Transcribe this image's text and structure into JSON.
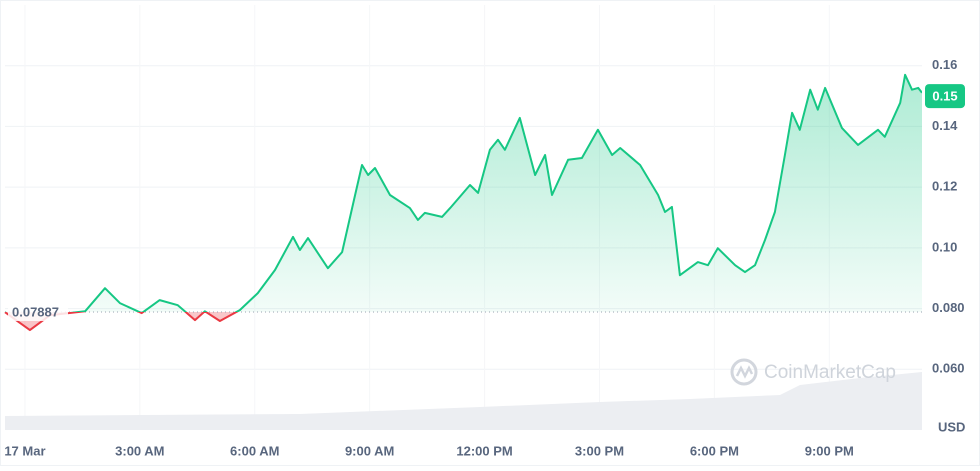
{
  "chart_data": {
    "type": "line",
    "y_label": "USD",
    "watermark": "CoinMarketCap",
    "baseline": 0.07887,
    "current_price": 0.15,
    "color_up": "#16c784",
    "color_down": "#ea3943",
    "grid": true,
    "xlim": [
      -0.52,
      23.42
    ],
    "xticks": [
      {
        "value": 0,
        "label": "17 Mar"
      },
      {
        "value": 3,
        "label": "3:00 AM"
      },
      {
        "value": 6,
        "label": "6:00 AM"
      },
      {
        "value": 9,
        "label": "9:00 AM"
      },
      {
        "value": 12,
        "label": "12:00 PM"
      },
      {
        "value": 15,
        "label": "3:00 PM"
      },
      {
        "value": 18,
        "label": "6:00 PM"
      },
      {
        "value": 21,
        "label": "9:00 PM"
      }
    ],
    "ylim": [
      0.04,
      0.18
    ],
    "yticks": [
      {
        "value": 0.06,
        "label": "0.060"
      },
      {
        "value": 0.08,
        "label": "0.080"
      },
      {
        "value": 0.1,
        "label": "0.10"
      },
      0.12,
      0.14,
      0.16
    ],
    "x": [
      -0.52,
      0.13,
      0.65,
      1.57,
      2.09,
      2.48,
      3.05,
      3.52,
      3.99,
      4.44,
      4.7,
      5.09,
      5.61,
      6.08,
      6.53,
      7.0,
      7.18,
      7.39,
      7.91,
      8.28,
      8.62,
      8.8,
      8.96,
      9.14,
      9.53,
      10.05,
      10.26,
      10.44,
      10.89,
      11.1,
      11.62,
      11.83,
      12.14,
      12.35,
      12.53,
      12.92,
      13.32,
      13.58,
      13.76,
      14.18,
      14.54,
      14.96,
      15.33,
      15.54,
      16.06,
      16.53,
      16.71,
      16.89,
      17.1,
      17.57,
      17.83,
      18.09,
      18.54,
      18.8,
      19.06,
      19.32,
      19.58,
      19.84,
      20.03,
      20.23,
      20.5,
      20.7,
      20.89,
      21.33,
      21.75,
      22.27,
      22.45,
      22.85,
      22.98,
      23.16,
      23.32,
      23.42
    ],
    "values": [
      0.0788,
      0.0729,
      0.0778,
      0.0791,
      0.0867,
      0.0818,
      0.0785,
      0.0828,
      0.0811,
      0.0762,
      0.0791,
      0.0759,
      0.0795,
      0.0851,
      0.0927,
      0.1036,
      0.0993,
      0.1032,
      0.0933,
      0.0986,
      0.1174,
      0.1273,
      0.124,
      0.1263,
      0.1174,
      0.1131,
      0.1092,
      0.1115,
      0.1102,
      0.1131,
      0.1207,
      0.1181,
      0.1323,
      0.1356,
      0.1323,
      0.1428,
      0.124,
      0.1306,
      0.1174,
      0.129,
      0.1296,
      0.1389,
      0.1306,
      0.1329,
      0.1273,
      0.1174,
      0.1118,
      0.1135,
      0.091,
      0.0953,
      0.0943,
      0.0999,
      0.0943,
      0.092,
      0.0943,
      0.1026,
      0.1118,
      0.1306,
      0.1445,
      0.1389,
      0.1521,
      0.1455,
      0.1527,
      0.1395,
      0.1339,
      0.1389,
      0.1366,
      0.1478,
      0.157,
      0.1521,
      0.1527,
      0.1511
    ]
  }
}
